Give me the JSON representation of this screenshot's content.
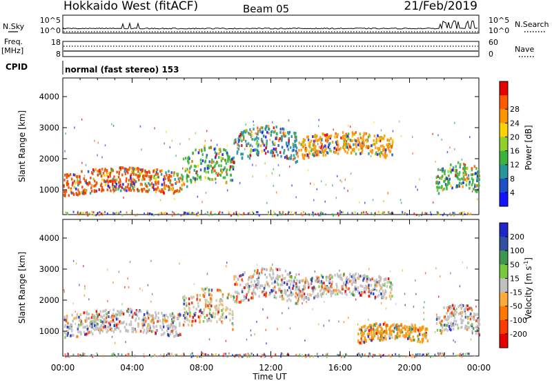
{
  "header": {
    "radar": "Hokkaido West (fitACF)",
    "beam": "Beam 05",
    "date": "21/Feb/2019"
  },
  "noise_panel": {
    "left_label": "N.Sky",
    "right_label": "N.Search",
    "left_ticks": [
      "10^5",
      "10^0"
    ],
    "right_ticks": [
      "10^5",
      "10^0"
    ]
  },
  "freq_panel": {
    "left_label_1": "Freq.",
    "left_label_2": "[MHz]",
    "left_ticks": [
      "18",
      "8"
    ],
    "right_label": "Nave",
    "right_ticks": [
      "60",
      "0"
    ]
  },
  "cpid": {
    "label": "CPID",
    "text": "normal (fast stereo) 153"
  },
  "chart_data": [
    {
      "type": "heatmap",
      "title": "",
      "quantity": "Power",
      "ylabel": "Slant Range [km]",
      "xlabel": "",
      "x_ticks": [
        "00:00",
        "04:00",
        "08:00",
        "12:00",
        "16:00",
        "20:00",
        "00:00"
      ],
      "xlim_hours": [
        0,
        24
      ],
      "ylim": [
        200,
        4600
      ],
      "y_ticks": [
        1000,
        2000,
        3000,
        4000
      ],
      "colorbar": {
        "label": "Power [dB]",
        "ticks": [
          "4",
          "8",
          "12",
          "16",
          "20",
          "24",
          "28"
        ],
        "colors": [
          "#1414ff",
          "#1e50c8",
          "#28969a",
          "#3cb43c",
          "#90d028",
          "#ffd200",
          "#ff9600",
          "#ff5a00",
          "#e60000"
        ]
      },
      "bands": [
        {
          "name": "morning-echo",
          "t0": 0.0,
          "t1": 6.8,
          "r0": 900,
          "r1": 1650,
          "core": "#e64b00"
        },
        {
          "name": "rise-echo",
          "t0": 6.8,
          "t1": 9.8,
          "r0": 1200,
          "r1": 2300,
          "core": "#3cb43c"
        },
        {
          "name": "mid-echo",
          "t0": 9.8,
          "t1": 13.5,
          "r0": 2000,
          "r1": 2950,
          "core": "#28969a"
        },
        {
          "name": "afternoon-echo",
          "t0": 13.5,
          "t1": 19.0,
          "r0": 2100,
          "r1": 2800,
          "core": "#ff9600"
        },
        {
          "name": "late-echo",
          "t0": 21.5,
          "t1": 24.0,
          "r0": 1000,
          "r1": 1800,
          "core": "#3cb43c"
        }
      ]
    },
    {
      "type": "heatmap",
      "title": "",
      "quantity": "Velocity",
      "ylabel": "Slant Range [km]",
      "xlabel": "Time UT",
      "x_ticks": [
        "00:00",
        "04:00",
        "08:00",
        "12:00",
        "16:00",
        "20:00",
        "00:00"
      ],
      "xlim_hours": [
        0,
        24
      ],
      "ylim": [
        200,
        4600
      ],
      "y_ticks": [
        1000,
        2000,
        3000,
        4000
      ],
      "colorbar": {
        "label": "Velocity [m s^-1]",
        "ticks": [
          "200",
          "100",
          "50",
          "15",
          "-15",
          "-50",
          "-100",
          "-200"
        ],
        "colors": [
          "#1e28c8",
          "#3250a0",
          "#3c9650",
          "#78c83c",
          "#c0c0c0",
          "#ffaa3c",
          "#ff7800",
          "#ff3c00",
          "#e60000"
        ]
      },
      "bands": [
        {
          "name": "morning-echo",
          "t0": 0.0,
          "t1": 6.8,
          "r0": 900,
          "r1": 1650,
          "core": "#c0c0c0"
        },
        {
          "name": "rise-echo",
          "t0": 6.8,
          "t1": 9.8,
          "r0": 1200,
          "r1": 2300,
          "core": "#d2c8a0"
        },
        {
          "name": "mid-echo",
          "t0": 9.8,
          "t1": 13.5,
          "r0": 2000,
          "r1": 2950,
          "core": "#c0c0c0"
        },
        {
          "name": "afternoon-echo",
          "t0": 13.5,
          "t1": 19.0,
          "r0": 2100,
          "r1": 2800,
          "core": "#c0c0c0"
        },
        {
          "name": "flow-echo",
          "t0": 17.0,
          "t1": 21.0,
          "r0": 700,
          "r1": 1250,
          "core": "#ff9600"
        },
        {
          "name": "late-echo",
          "t0": 21.5,
          "t1": 24.0,
          "r0": 1000,
          "r1": 1800,
          "core": "#c0c0c0"
        }
      ]
    }
  ]
}
